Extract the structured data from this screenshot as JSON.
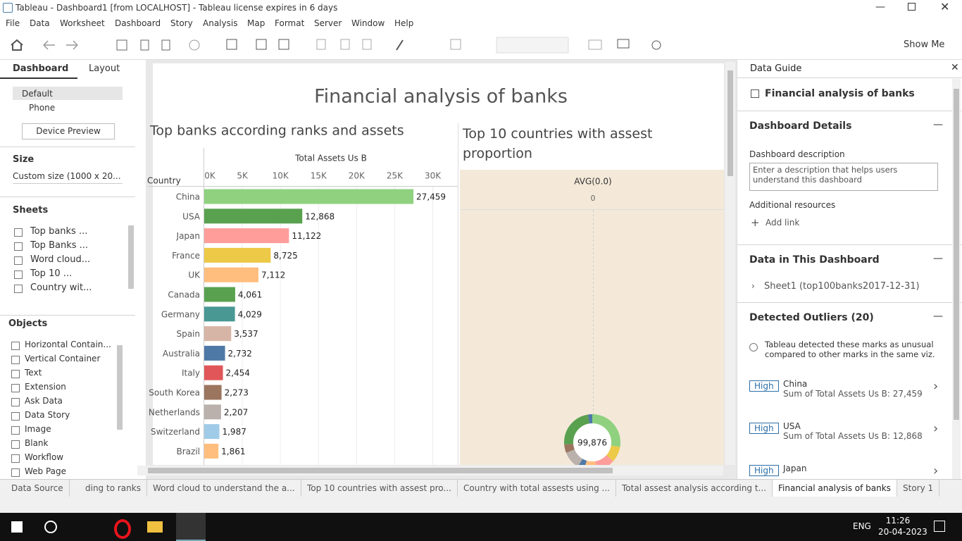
{
  "window": {
    "title": "Tableau - Dashboard1 [from LOCALHOST] - Tableau license expires in 6 days"
  },
  "menu": [
    "File",
    "Data",
    "Worksheet",
    "Dashboard",
    "Story",
    "Analysis",
    "Map",
    "Format",
    "Server",
    "Window",
    "Help"
  ],
  "toolbar": {
    "show_me": "Show Me"
  },
  "left_panel": {
    "tabs": [
      "Dashboard",
      "Layout"
    ],
    "devices": [
      "Default",
      "Phone"
    ],
    "device_preview": "Device Preview",
    "size_heading": "Size",
    "size_value": "Custom size (1000 x 20...",
    "sheets_heading": "Sheets",
    "sheets": [
      "Top banks ...",
      "Top Banks ...",
      "Word cloud...",
      "Top 10 ...",
      "Country wit..."
    ],
    "objects_heading": "Objects",
    "objects": [
      "Horizontal Contain...",
      "Vertical Container",
      "Text",
      "Extension",
      "Ask Data",
      "Data Story",
      "Image",
      "Blank",
      "Workflow",
      "Web Page"
    ]
  },
  "dashboard": {
    "title": "Financial analysis of banks",
    "bar_chart": {
      "title": "Top banks according ranks and assets",
      "x_label": "Total Assets Us B",
      "y_label": "Country",
      "categories": [
        "China",
        "USA",
        "Japan",
        "France",
        "UK",
        "Canada",
        "Germany",
        "Spain",
        "Australia",
        "Italy",
        "South Korea",
        "Netherlands",
        "Switzerland",
        "Brazil"
      ],
      "values": [
        27459,
        12868,
        11122,
        8725,
        7112,
        4061,
        4029,
        3537,
        2732,
        2454,
        2273,
        2207,
        1987,
        1861
      ],
      "value_labels": [
        "27,459",
        "12,868",
        "11,122",
        "8,725",
        "7,112",
        "4,061",
        "4,029",
        "3,537",
        "2,732",
        "2,454",
        "2,273",
        "2,207",
        "1,987",
        "1,861"
      ],
      "colors": [
        "#8fd17f",
        "#59a14f",
        "#ff9d9a",
        "#edc948",
        "#ffbe7d",
        "#59a14f",
        "#499894",
        "#d7b5a6",
        "#4e79a7",
        "#e15759",
        "#9c755f",
        "#bab0ac",
        "#a0cbe8",
        "#ffbe7d"
      ],
      "xlim": [
        0,
        33000
      ],
      "xticks": [
        {
          "value": 0,
          "label": "0K"
        },
        {
          "value": 5000,
          "label": "5K"
        },
        {
          "value": 10000,
          "label": "10K"
        },
        {
          "value": 15000,
          "label": "15K"
        },
        {
          "value": 20000,
          "label": "20K"
        },
        {
          "value": 25000,
          "label": "25K"
        },
        {
          "value": 30000,
          "label": "30K"
        }
      ]
    },
    "donut": {
      "title": "Top 10 countries with assest proportion",
      "header": "AVG(0.0)",
      "header_value": "0",
      "center_label": "99,876"
    }
  },
  "data_guide": {
    "title": "Data Guide",
    "dashboard_name": "Financial analysis of banks",
    "details_heading": "Dashboard Details",
    "description_label": "Dashboard description",
    "description_placeholder": "Enter a description that helps users understand this dashboard",
    "resources_label": "Additional resources",
    "add_link": "Add link",
    "data_heading": "Data in This Dashboard",
    "data_source": "Sheet1 (top100banks2017-12-31)",
    "outliers_heading": "Detected Outliers (20)",
    "outliers_note": "Tableau detected these marks as unusual compared to other marks in the same viz.",
    "outliers": [
      {
        "level": "High",
        "name": "China",
        "detail": "Sum of Total Assets Us B: 27,459"
      },
      {
        "level": "High",
        "name": "USA",
        "detail": "Sum of Total Assets Us B: 12,868"
      },
      {
        "level": "High",
        "name": "Japan"
      }
    ]
  },
  "sheet_tabs": [
    "Data Source",
    "ding to ranks",
    "Word cloud to understand the a...",
    "Top 10 countries with assest pro...",
    "Country with total assests using ...",
    "Total assest analysis according t...",
    "Financial analysis of banks",
    "Story 1"
  ],
  "taskbar": {
    "language": "ENG",
    "time": "11:26",
    "date": "20-04-2023"
  }
}
